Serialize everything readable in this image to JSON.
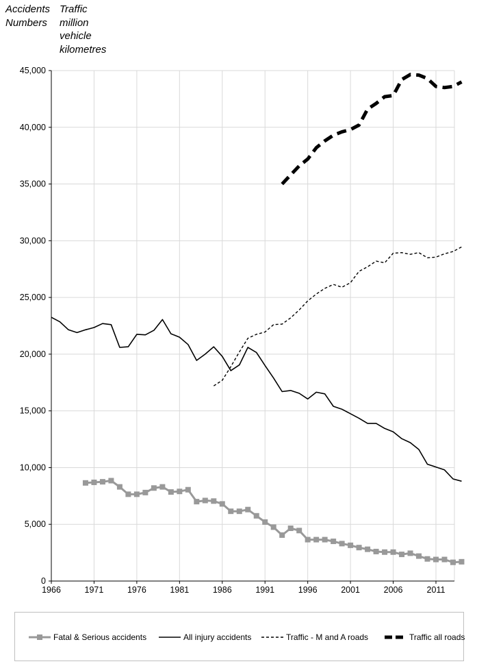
{
  "header": {
    "left_lines": [
      "Accidents",
      "Numbers"
    ],
    "right_lines": [
      "Traffic",
      "million",
      "vehicle",
      "kilometres"
    ]
  },
  "chart_data": {
    "type": "line",
    "title": "",
    "xlabel": "",
    "ylabel": "",
    "xlim": [
      1966,
      2015
    ],
    "ylim": [
      0,
      45000
    ],
    "x_ticks": [
      1966,
      1971,
      1976,
      1981,
      1986,
      1991,
      1996,
      2001,
      2006,
      2011
    ],
    "y_ticks": [
      0,
      5000,
      10000,
      15000,
      20000,
      25000,
      30000,
      35000,
      40000,
      45000
    ],
    "y_tick_labels": [
      "0",
      "5,000",
      "10,000",
      "15,000",
      "20,000",
      "25,000",
      "30,000",
      "35,000",
      "40,000",
      "45,000"
    ],
    "grid": true,
    "legend_position": "bottom",
    "series": [
      {
        "name": "Fatal & Serious accidents",
        "color": "#999999",
        "style": "solid-square-markers",
        "x": [
          1970,
          1971,
          1972,
          1973,
          1974,
          1975,
          1976,
          1977,
          1978,
          1979,
          1980,
          1981,
          1982,
          1983,
          1984,
          1985,
          1986,
          1987,
          1988,
          1989,
          1990,
          1991,
          1992,
          1993,
          1994,
          1995,
          1996,
          1997,
          1998,
          1999,
          2000,
          2001,
          2002,
          2003,
          2004,
          2005,
          2006,
          2007,
          2008,
          2009,
          2010,
          2011,
          2012,
          2013,
          2014
        ],
        "y": [
          8650,
          8700,
          8750,
          8850,
          8300,
          7650,
          7650,
          7800,
          8200,
          8300,
          7850,
          7900,
          8050,
          7000,
          7100,
          7050,
          6800,
          6150,
          6150,
          6300,
          5750,
          5200,
          4750,
          4050,
          4650,
          4450,
          3650,
          3650,
          3650,
          3500,
          3300,
          3150,
          2950,
          2800,
          2600,
          2550,
          2550,
          2350,
          2450,
          2200,
          1950,
          1900,
          1900,
          1650,
          1700
        ]
      },
      {
        "name": "All injury accidents",
        "color": "#000000",
        "style": "solid",
        "x": [
          1966,
          1967,
          1968,
          1969,
          1970,
          1971,
          1972,
          1973,
          1974,
          1975,
          1976,
          1977,
          1978,
          1979,
          1980,
          1981,
          1982,
          1983,
          1984,
          1985,
          1986,
          1987,
          1988,
          1989,
          1990,
          1991,
          1992,
          1993,
          1994,
          1995,
          1996,
          1997,
          1998,
          1999,
          2000,
          2001,
          2002,
          2003,
          2004,
          2005,
          2006,
          2007,
          2008,
          2009,
          2010,
          2011,
          2012,
          2013,
          2014
        ],
        "y": [
          23250,
          22850,
          22150,
          21900,
          22150,
          22350,
          22700,
          22600,
          20600,
          20650,
          21750,
          21700,
          22100,
          23050,
          21800,
          21500,
          20850,
          19450,
          20000,
          20650,
          19800,
          18550,
          19050,
          20600,
          20150,
          19000,
          17900,
          16700,
          16800,
          16550,
          16050,
          16650,
          16500,
          15400,
          15150,
          14750,
          14350,
          13900,
          13900,
          13450,
          13150,
          12550,
          12200,
          11600,
          10300,
          10050,
          9800,
          9000,
          8800
        ]
      },
      {
        "name": "Traffic - M and A roads",
        "color": "#000000",
        "style": "dashed",
        "x": [
          1985,
          1986,
          1987,
          1988,
          1989,
          1990,
          1991,
          1992,
          1993,
          1994,
          1995,
          1996,
          1997,
          1998,
          1999,
          2000,
          2001,
          2002,
          2003,
          2004,
          2005,
          2006,
          2007,
          2008,
          2009,
          2010,
          2011,
          2012,
          2013,
          2014
        ],
        "y": [
          17200,
          17700,
          18900,
          20200,
          21400,
          21750,
          21950,
          22600,
          22650,
          23200,
          23900,
          24700,
          25300,
          25800,
          26150,
          25900,
          26300,
          27300,
          27700,
          28200,
          28050,
          28900,
          28950,
          28800,
          28950,
          28500,
          28550,
          28850,
          29050,
          29450
        ]
      },
      {
        "name": "Traffic all roads",
        "color": "#000000",
        "style": "heavy-dashed",
        "x": [
          1993,
          1994,
          1995,
          1996,
          1997,
          1998,
          1999,
          2000,
          2001,
          2002,
          2003,
          2004,
          2005,
          2006,
          2007,
          2008,
          2009,
          2010,
          2011,
          2012,
          2013,
          2014
        ],
        "y": [
          35000,
          35800,
          36600,
          37200,
          38200,
          38800,
          39300,
          39600,
          39800,
          40200,
          41600,
          42100,
          42700,
          42800,
          44200,
          44650,
          44600,
          44300,
          43600,
          43500,
          43600,
          44000
        ]
      }
    ]
  }
}
